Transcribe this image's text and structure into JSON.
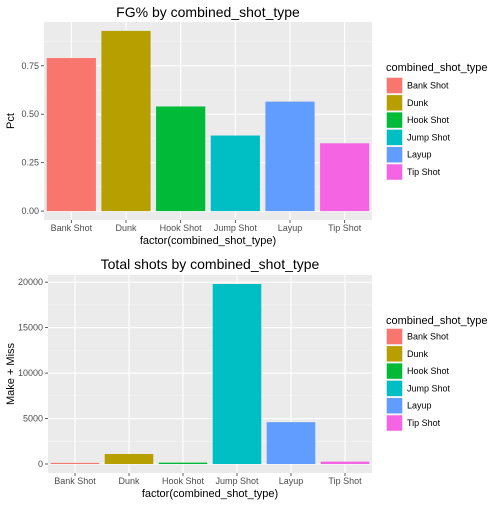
{
  "chart_data": [
    {
      "type": "bar",
      "title": "FG% by combined_shot_type",
      "xlabel": "factor(combined_shot_type)",
      "ylabel": "Pct",
      "categories": [
        "Bank Shot",
        "Dunk",
        "Hook Shot",
        "Jump Shot",
        "Layup",
        "Tip Shot"
      ],
      "values": [
        0.79,
        0.93,
        0.54,
        0.39,
        0.565,
        0.35
      ],
      "ylim": [
        -0.046,
        0.976
      ],
      "yticks": [
        0.0,
        0.25,
        0.5,
        0.75
      ],
      "ytick_labels": [
        "0.00",
        "0.25",
        "0.50",
        "0.75"
      ],
      "colors": [
        "#F8766D",
        "#B79F00",
        "#00BA38",
        "#00BFC4",
        "#619CFF",
        "#F564E3"
      ],
      "legend": {
        "title": "combined_shot_type",
        "entries": [
          "Bank Shot",
          "Dunk",
          "Hook Shot",
          "Jump Shot",
          "Layup",
          "Tip Shot"
        ],
        "position": "right"
      },
      "grid": true
    },
    {
      "type": "bar",
      "title": "Total shots by combined_shot_type",
      "xlabel": "factor(combined_shot_type)",
      "ylabel": "Make + Miss",
      "categories": [
        "Bank Shot",
        "Dunk",
        "Hook Shot",
        "Jump Shot",
        "Layup",
        "Tip Shot"
      ],
      "values": [
        120,
        1100,
        150,
        19800,
        4600,
        260
      ],
      "ylim": [
        -990,
        20790
      ],
      "yticks": [
        0,
        5000,
        10000,
        15000,
        20000
      ],
      "ytick_labels": [
        "0",
        "5000",
        "10000",
        "15000",
        "20000"
      ],
      "colors": [
        "#F8766D",
        "#B79F00",
        "#00BA38",
        "#00BFC4",
        "#619CFF",
        "#F564E3"
      ],
      "legend": {
        "title": "combined_shot_type",
        "entries": [
          "Bank Shot",
          "Dunk",
          "Hook Shot",
          "Jump Shot",
          "Layup",
          "Tip Shot"
        ],
        "position": "right"
      },
      "grid": true
    }
  ]
}
